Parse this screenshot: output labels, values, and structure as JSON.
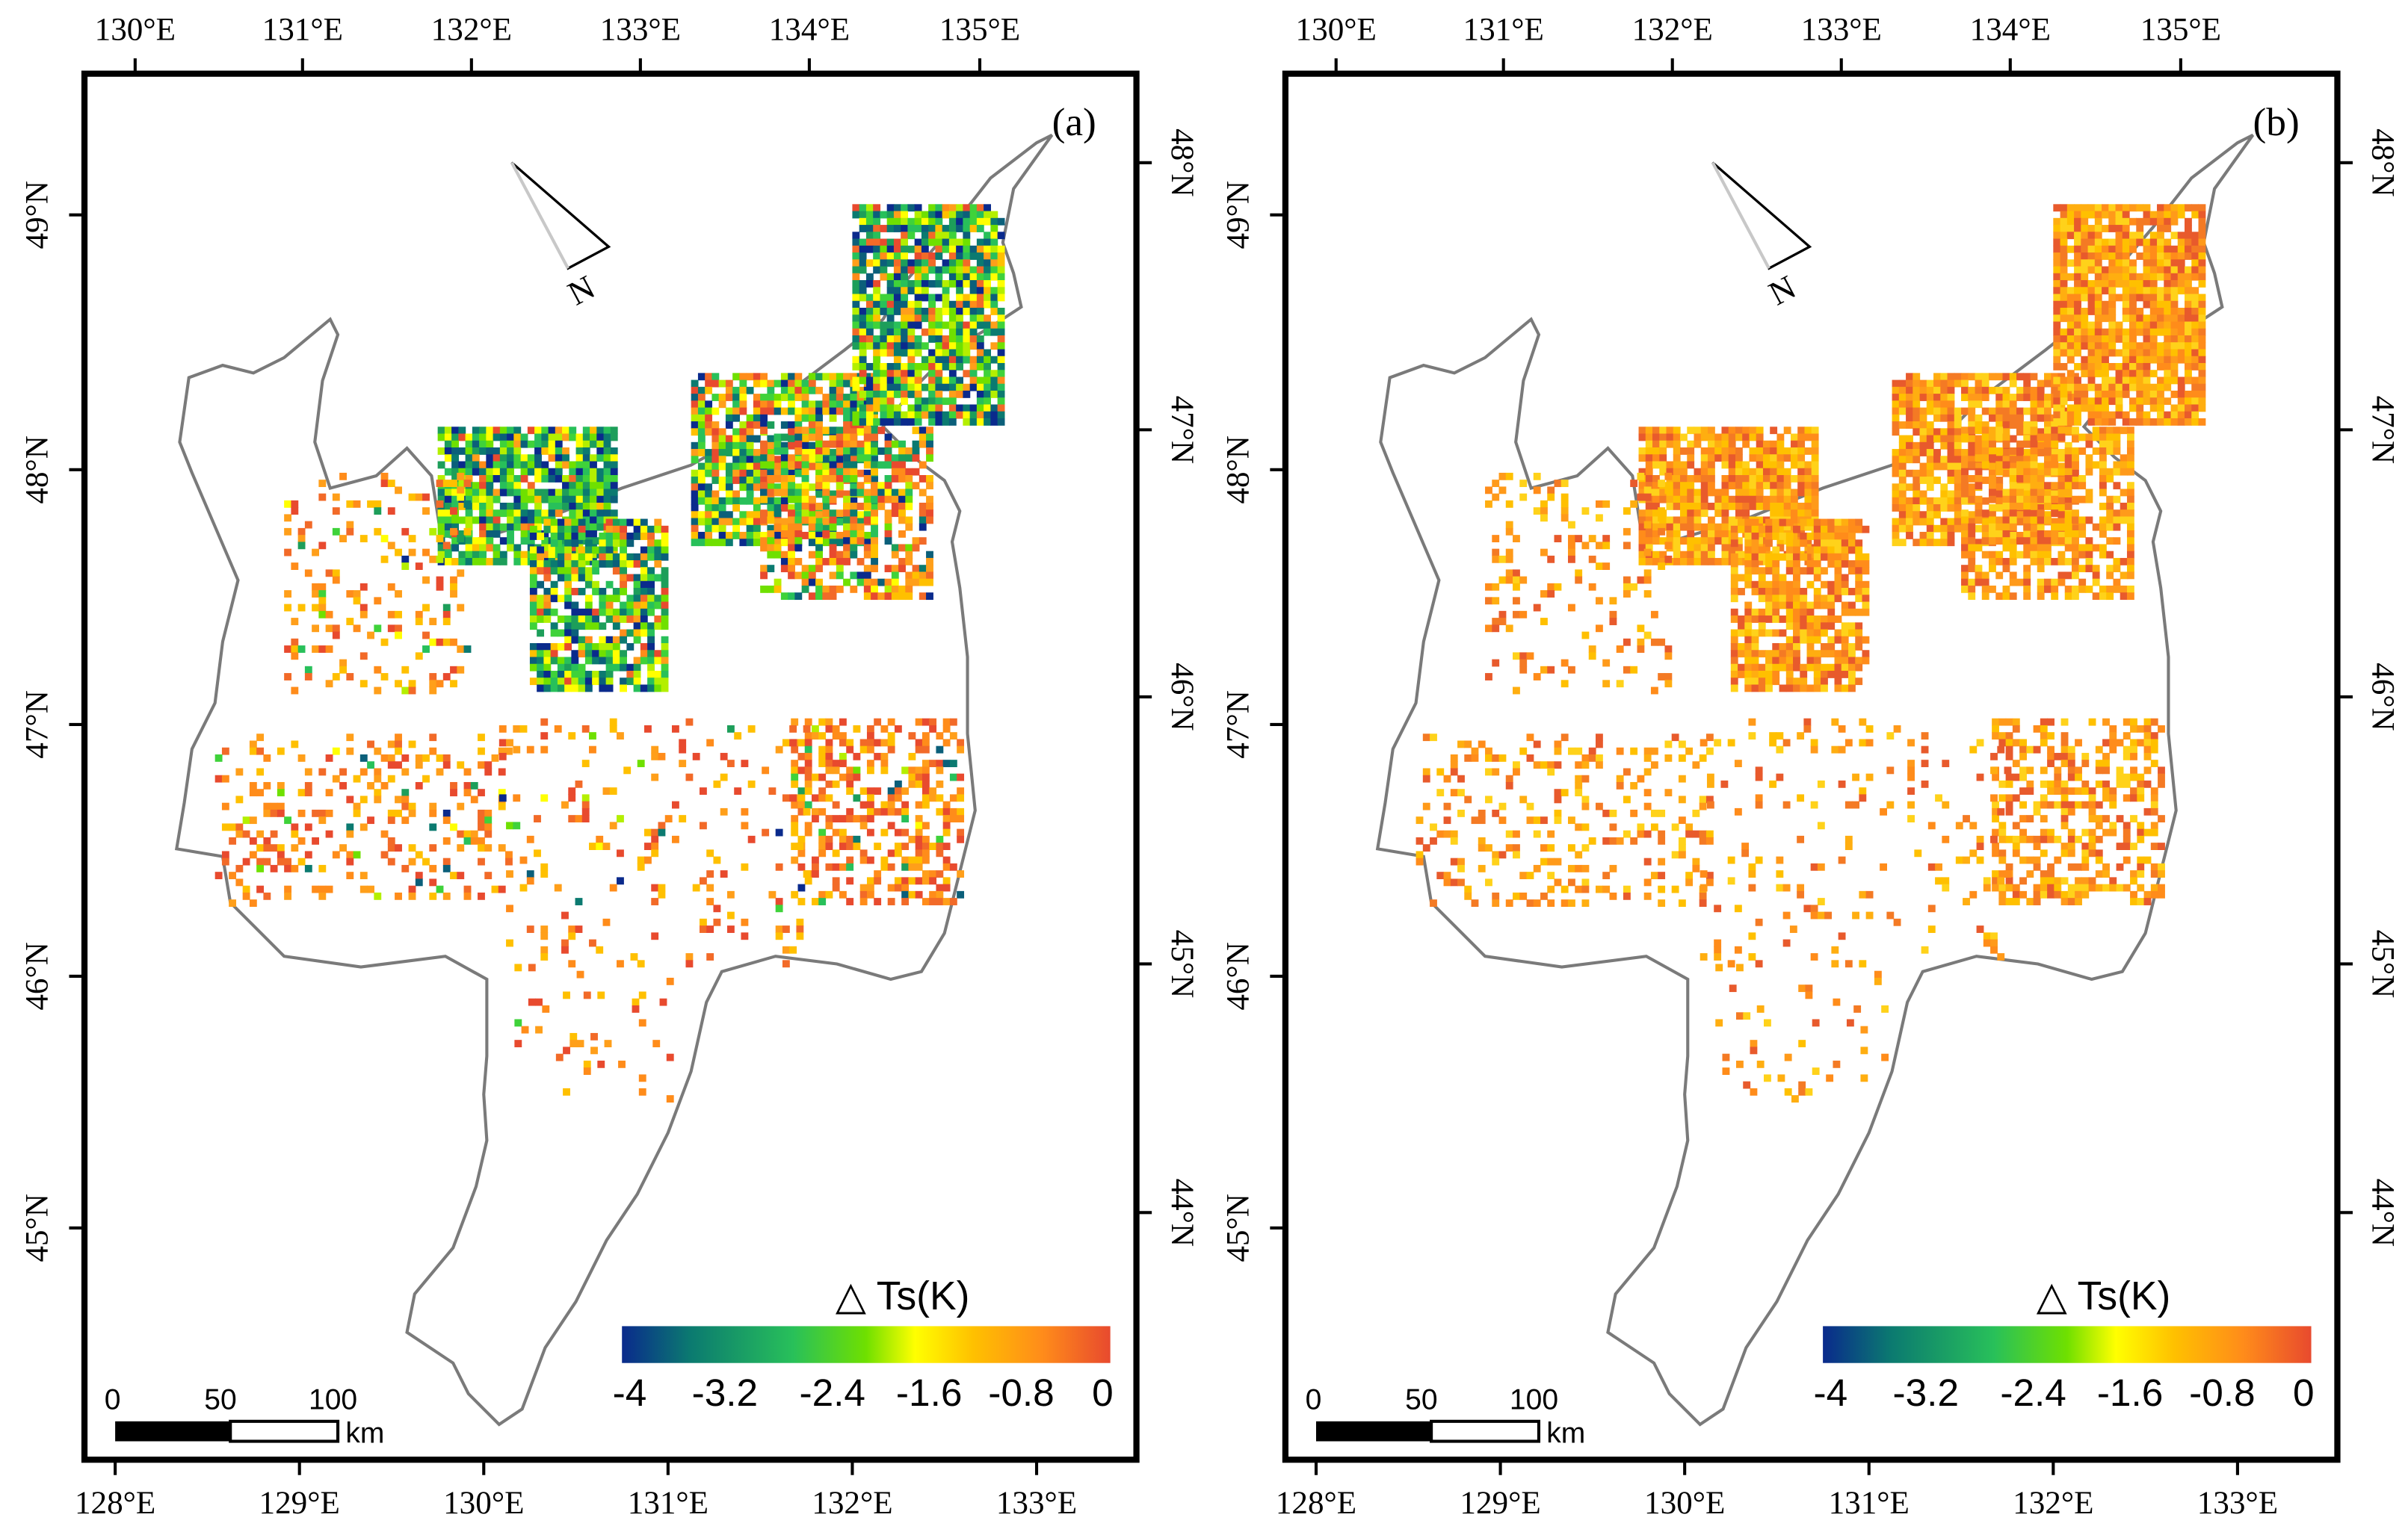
{
  "figure": {
    "panels": [
      {
        "id": "a",
        "label": "(a)",
        "top_lon_labels": [
          "130°E",
          "131°E",
          "132°E",
          "133°E",
          "134°E",
          "135°E"
        ],
        "bottom_lon_labels": [
          "128°E",
          "129°E",
          "130°E",
          "131°E",
          "132°E",
          "133°E"
        ],
        "left_lat_labels": [
          "49°N",
          "48°N",
          "47°N",
          "46°N",
          "45°N"
        ],
        "right_lat_labels": [
          "48°N",
          "47°N",
          "46°N",
          "45°N",
          "44°N"
        ],
        "north_arrow_letter": "N",
        "scale_bar": {
          "labels": [
            "0",
            "50",
            "100"
          ],
          "unit": "km"
        },
        "legend": {
          "title": "△ Ts(K)",
          "ticks": [
            "-4",
            "-3.2",
            "-2.4",
            "-1.6",
            "-0.8",
            "0"
          ],
          "colors": [
            "#0a2a8c",
            "#0b7a70",
            "#28c05a",
            "#6fe000",
            "#ffff00",
            "#ffc000",
            "#ff8c1a",
            "#e84a2e"
          ]
        },
        "pattern": "cold"
      },
      {
        "id": "b",
        "label": "(b)",
        "top_lon_labels": [
          "130°E",
          "131°E",
          "132°E",
          "133°E",
          "134°E",
          "135°E"
        ],
        "bottom_lon_labels": [
          "128°E",
          "129°E",
          "130°E",
          "131°E",
          "132°E",
          "133°E"
        ],
        "left_lat_labels": [
          "49°N",
          "48°N",
          "47°N",
          "46°N",
          "45°N"
        ],
        "right_lat_labels": [
          "48°N",
          "47°N",
          "46°N",
          "45°N",
          "44°N"
        ],
        "north_arrow_letter": "N",
        "scale_bar": {
          "labels": [
            "0",
            "50",
            "100"
          ],
          "unit": "km"
        },
        "legend": {
          "title": "△ Ts(K)",
          "ticks": [
            "-4",
            "-3.2",
            "-2.4",
            "-1.6",
            "-0.8",
            "0"
          ],
          "colors": [
            "#0a2a8c",
            "#0b7a70",
            "#28c05a",
            "#6fe000",
            "#ffff00",
            "#ffc000",
            "#ff8c1a",
            "#e84a2e"
          ]
        },
        "pattern": "warm"
      }
    ]
  }
}
